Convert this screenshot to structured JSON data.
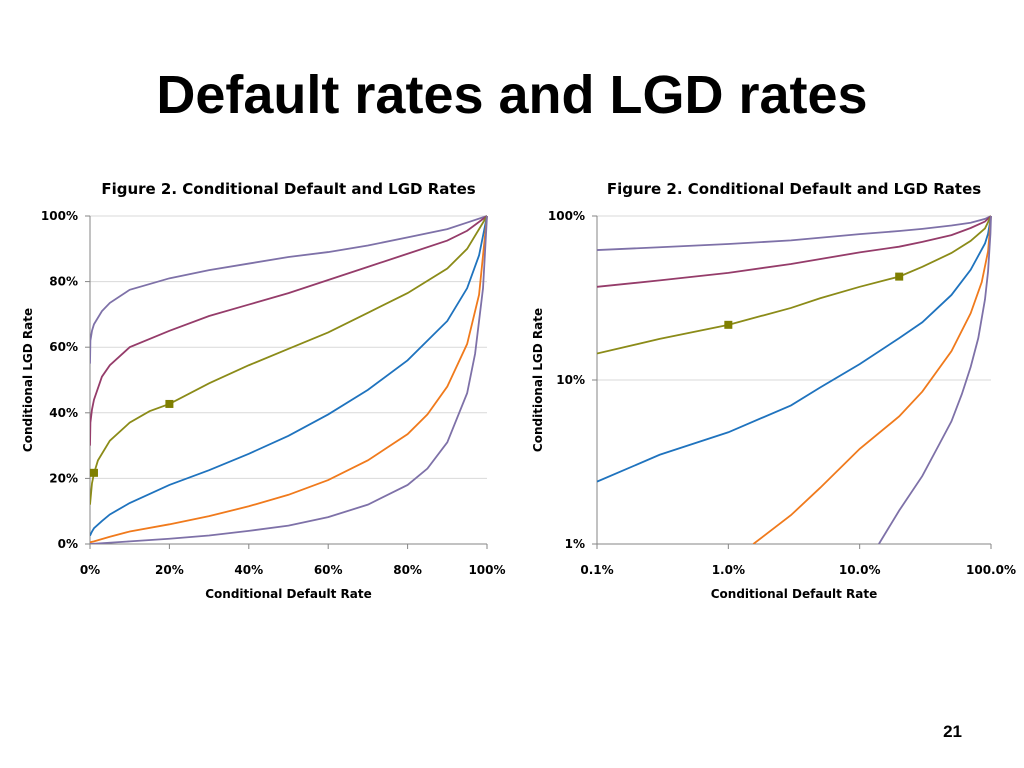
{
  "slide": {
    "title": "Default rates and LGD rates",
    "page_number": "21"
  },
  "chart_data": [
    {
      "type": "line",
      "title": "Figure 2. Conditional Default and LGD Rates",
      "xlabel": "Conditional Default Rate",
      "ylabel": "Conditional LGD Rate",
      "x_scale": "linear",
      "y_scale": "linear",
      "xlim": [
        0,
        1
      ],
      "ylim": [
        0,
        1
      ],
      "x_ticks": [
        0,
        0.2,
        0.4,
        0.6,
        0.8,
        1.0
      ],
      "x_tick_labels": [
        "0%",
        "20%",
        "40%",
        "60%",
        "80%",
        "100%"
      ],
      "y_ticks": [
        0,
        0.2,
        0.4,
        0.6,
        0.8,
        1.0
      ],
      "y_tick_labels": [
        "0%",
        "20%",
        "40%",
        "60%",
        "80%",
        "100%"
      ],
      "grid": "horizontal",
      "series": [
        {
          "color": "#7E71A8",
          "points": [
            [
              0,
              0.55
            ],
            [
              0.001,
              0.62
            ],
            [
              0.005,
              0.65
            ],
            [
              0.01,
              0.67
            ],
            [
              0.03,
              0.71
            ],
            [
              0.05,
              0.735
            ],
            [
              0.1,
              0.775
            ],
            [
              0.2,
              0.81
            ],
            [
              0.3,
              0.835
            ],
            [
              0.4,
              0.855
            ],
            [
              0.5,
              0.875
            ],
            [
              0.6,
              0.89
            ],
            [
              0.7,
              0.91
            ],
            [
              0.8,
              0.935
            ],
            [
              0.9,
              0.96
            ],
            [
              0.95,
              0.98
            ],
            [
              1.0,
              1.0
            ]
          ]
        },
        {
          "color": "#953C6A",
          "points": [
            [
              0,
              0.3
            ],
            [
              0.001,
              0.37
            ],
            [
              0.005,
              0.41
            ],
            [
              0.01,
              0.44
            ],
            [
              0.03,
              0.51
            ],
            [
              0.05,
              0.545
            ],
            [
              0.1,
              0.6
            ],
            [
              0.2,
              0.65
            ],
            [
              0.3,
              0.695
            ],
            [
              0.4,
              0.73
            ],
            [
              0.5,
              0.765
            ],
            [
              0.6,
              0.805
            ],
            [
              0.7,
              0.845
            ],
            [
              0.8,
              0.885
            ],
            [
              0.9,
              0.925
            ],
            [
              0.95,
              0.955
            ],
            [
              1.0,
              1.0
            ]
          ]
        },
        {
          "color": "#8B8B18",
          "points": [
            [
              0,
              0.12
            ],
            [
              0.005,
              0.185
            ],
            [
              0.01,
              0.215
            ],
            [
              0.02,
              0.255
            ],
            [
              0.05,
              0.315
            ],
            [
              0.1,
              0.37
            ],
            [
              0.15,
              0.405
            ],
            [
              0.2,
              0.427
            ],
            [
              0.3,
              0.49
            ],
            [
              0.4,
              0.545
            ],
            [
              0.5,
              0.595
            ],
            [
              0.6,
              0.645
            ],
            [
              0.7,
              0.705
            ],
            [
              0.8,
              0.765
            ],
            [
              0.9,
              0.84
            ],
            [
              0.95,
              0.9
            ],
            [
              1.0,
              1.0
            ]
          ]
        },
        {
          "color": "#1F73BE",
          "points": [
            [
              0,
              0.025
            ],
            [
              0.005,
              0.038
            ],
            [
              0.01,
              0.048
            ],
            [
              0.03,
              0.07
            ],
            [
              0.05,
              0.09
            ],
            [
              0.1,
              0.125
            ],
            [
              0.2,
              0.18
            ],
            [
              0.3,
              0.225
            ],
            [
              0.4,
              0.275
            ],
            [
              0.5,
              0.33
            ],
            [
              0.6,
              0.395
            ],
            [
              0.7,
              0.47
            ],
            [
              0.8,
              0.56
            ],
            [
              0.9,
              0.68
            ],
            [
              0.95,
              0.78
            ],
            [
              0.98,
              0.88
            ],
            [
              1.0,
              1.0
            ]
          ]
        },
        {
          "color": "#F07A1C",
          "points": [
            [
              0,
              0.005
            ],
            [
              0.01,
              0.008
            ],
            [
              0.05,
              0.022
            ],
            [
              0.1,
              0.038
            ],
            [
              0.2,
              0.06
            ],
            [
              0.3,
              0.085
            ],
            [
              0.4,
              0.115
            ],
            [
              0.5,
              0.15
            ],
            [
              0.6,
              0.195
            ],
            [
              0.7,
              0.255
            ],
            [
              0.8,
              0.335
            ],
            [
              0.85,
              0.395
            ],
            [
              0.9,
              0.48
            ],
            [
              0.95,
              0.61
            ],
            [
              0.98,
              0.76
            ],
            [
              1.0,
              1.0
            ]
          ]
        },
        {
          "color": "#7E71A8",
          "points": [
            [
              0,
              0.0
            ],
            [
              0.1,
              0.008
            ],
            [
              0.2,
              0.016
            ],
            [
              0.3,
              0.026
            ],
            [
              0.4,
              0.04
            ],
            [
              0.5,
              0.056
            ],
            [
              0.6,
              0.082
            ],
            [
              0.7,
              0.12
            ],
            [
              0.8,
              0.18
            ],
            [
              0.85,
              0.23
            ],
            [
              0.9,
              0.31
            ],
            [
              0.95,
              0.46
            ],
            [
              0.97,
              0.58
            ],
            [
              0.99,
              0.78
            ],
            [
              1.0,
              1.0
            ]
          ]
        }
      ],
      "markers": [
        {
          "x": 0.01,
          "y": 0.217,
          "color": "#7F7F00"
        },
        {
          "x": 0.2,
          "y": 0.427,
          "color": "#7F7F00"
        }
      ]
    },
    {
      "type": "line",
      "title": "Figure 2. Conditional Default and LGD Rates",
      "xlabel": "Conditional Default Rate",
      "ylabel": "Conditional LGD Rate",
      "x_scale": "log",
      "y_scale": "log",
      "xlim": [
        0.001,
        1
      ],
      "ylim": [
        0.01,
        1
      ],
      "x_ticks": [
        0.001,
        0.01,
        0.1,
        1.0
      ],
      "x_tick_labels": [
        "0.1%",
        "1.0%",
        "10.0%",
        "100.0%"
      ],
      "y_ticks": [
        0.01,
        0.1,
        1.0
      ],
      "y_tick_labels": [
        "1%",
        "10%",
        "100%"
      ],
      "grid": "horizontal",
      "series": [
        {
          "color": "#7E71A8",
          "points": [
            [
              0.001,
              0.62
            ],
            [
              0.003,
              0.645
            ],
            [
              0.01,
              0.675
            ],
            [
              0.03,
              0.71
            ],
            [
              0.1,
              0.775
            ],
            [
              0.2,
              0.81
            ],
            [
              0.3,
              0.835
            ],
            [
              0.5,
              0.875
            ],
            [
              0.7,
              0.91
            ],
            [
              0.9,
              0.96
            ],
            [
              1.0,
              1.0
            ]
          ]
        },
        {
          "color": "#953C6A",
          "points": [
            [
              0.001,
              0.37
            ],
            [
              0.003,
              0.405
            ],
            [
              0.01,
              0.45
            ],
            [
              0.03,
              0.51
            ],
            [
              0.1,
              0.6
            ],
            [
              0.2,
              0.65
            ],
            [
              0.3,
              0.695
            ],
            [
              0.5,
              0.765
            ],
            [
              0.7,
              0.845
            ],
            [
              0.9,
              0.925
            ],
            [
              1.0,
              1.0
            ]
          ]
        },
        {
          "color": "#8B8B18",
          "points": [
            [
              0.001,
              0.145
            ],
            [
              0.003,
              0.178
            ],
            [
              0.01,
              0.217
            ],
            [
              0.03,
              0.275
            ],
            [
              0.05,
              0.315
            ],
            [
              0.1,
              0.37
            ],
            [
              0.2,
              0.427
            ],
            [
              0.3,
              0.49
            ],
            [
              0.5,
              0.595
            ],
            [
              0.7,
              0.705
            ],
            [
              0.9,
              0.84
            ],
            [
              1.0,
              1.0
            ]
          ]
        },
        {
          "color": "#1F73BE",
          "points": [
            [
              0.001,
              0.024
            ],
            [
              0.003,
              0.035
            ],
            [
              0.01,
              0.048
            ],
            [
              0.03,
              0.07
            ],
            [
              0.05,
              0.09
            ],
            [
              0.1,
              0.125
            ],
            [
              0.2,
              0.18
            ],
            [
              0.3,
              0.225
            ],
            [
              0.5,
              0.33
            ],
            [
              0.7,
              0.47
            ],
            [
              0.9,
              0.68
            ],
            [
              0.95,
              0.78
            ],
            [
              1.0,
              1.0
            ]
          ]
        },
        {
          "color": "#F07A1C",
          "points": [
            [
              0.0155,
              0.01
            ],
            [
              0.03,
              0.015
            ],
            [
              0.05,
              0.022
            ],
            [
              0.1,
              0.038
            ],
            [
              0.2,
              0.06
            ],
            [
              0.3,
              0.085
            ],
            [
              0.5,
              0.15
            ],
            [
              0.7,
              0.255
            ],
            [
              0.85,
              0.395
            ],
            [
              0.95,
              0.61
            ],
            [
              1.0,
              1.0
            ]
          ]
        },
        {
          "color": "#7E71A8",
          "points": [
            [
              0.14,
              0.01
            ],
            [
              0.2,
              0.016
            ],
            [
              0.3,
              0.026
            ],
            [
              0.4,
              0.04
            ],
            [
              0.5,
              0.056
            ],
            [
              0.6,
              0.082
            ],
            [
              0.7,
              0.12
            ],
            [
              0.8,
              0.18
            ],
            [
              0.9,
              0.31
            ],
            [
              0.95,
              0.46
            ],
            [
              0.99,
              0.78
            ],
            [
              1.0,
              1.0
            ]
          ]
        }
      ],
      "markers": [
        {
          "x": 0.01,
          "y": 0.217,
          "color": "#7F7F00"
        },
        {
          "x": 0.2,
          "y": 0.427,
          "color": "#7F7F00"
        }
      ]
    }
  ]
}
